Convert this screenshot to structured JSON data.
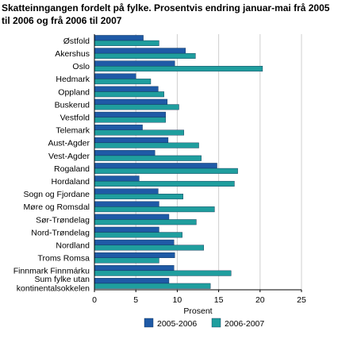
{
  "chart_data": {
    "type": "bar",
    "orientation": "horizontal",
    "title_lines": [
      "Skatteinngangen fordelt på fylke. Prosentvis endring januar-mai frå 2005",
      "til 2006 og frå 2006 til 2007"
    ],
    "categories": [
      [
        "Østfold"
      ],
      [
        "Akershus"
      ],
      [
        "Oslo"
      ],
      [
        "Hedmark"
      ],
      [
        "Oppland"
      ],
      [
        "Buskerud"
      ],
      [
        "Vestfold"
      ],
      [
        "Telemark"
      ],
      [
        "Aust-Agder"
      ],
      [
        "Vest-Agder"
      ],
      [
        "Rogaland"
      ],
      [
        "Hordaland"
      ],
      [
        "Sogn og Fjordane"
      ],
      [
        "Møre og Romsdal"
      ],
      [
        "Sør-Trøndelag"
      ],
      [
        "Nord-Trøndelag"
      ],
      [
        "Nordland"
      ],
      [
        "Troms Romsa"
      ],
      [
        "Finnmark Finnmárku"
      ],
      [
        "Sum fylke utan",
        "kontinentalsokkelen"
      ]
    ],
    "series": [
      {
        "name": "2005-2006",
        "color": "#1f5aa6",
        "values": [
          5.9,
          11.0,
          9.7,
          5.0,
          7.7,
          8.8,
          8.6,
          5.8,
          8.9,
          7.3,
          14.8,
          5.4,
          7.7,
          7.8,
          9.0,
          7.8,
          9.6,
          9.7,
          9.6,
          9.0
        ]
      },
      {
        "name": "2006-2007",
        "color": "#1f9e9e",
        "values": [
          7.8,
          12.2,
          20.3,
          6.8,
          8.4,
          10.2,
          8.6,
          10.8,
          12.6,
          12.9,
          17.3,
          16.9,
          10.7,
          14.5,
          12.3,
          10.6,
          13.2,
          7.8,
          16.5,
          14.0
        ]
      }
    ],
    "xticks": [
      0,
      5,
      10,
      15,
      20,
      25
    ],
    "xlim": [
      0,
      25
    ],
    "xlabel": "Prosent",
    "grid": true,
    "legend_position": "bottom"
  }
}
